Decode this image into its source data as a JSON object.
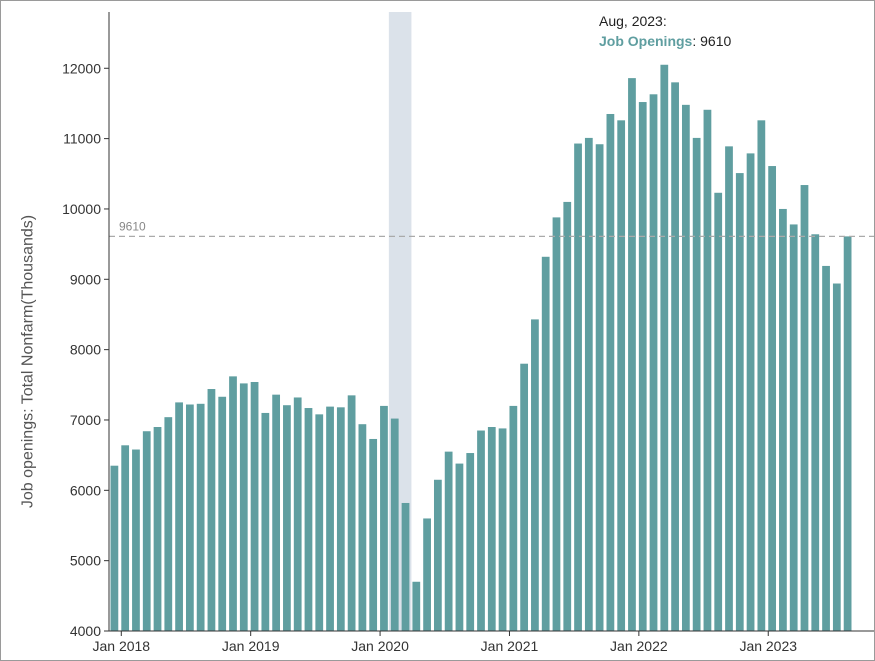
{
  "chart_data": {
    "type": "bar",
    "ylabel": "Job openings: Total Nonfarm(Thousands)",
    "xlabel": "",
    "ylim": [
      4000,
      12800
    ],
    "y_ticks": [
      4000,
      5000,
      6000,
      7000,
      8000,
      9000,
      10000,
      11000,
      12000
    ],
    "x_start": "2017-12",
    "x_ticks": [
      {
        "label": "Jan 2018",
        "date": "2018-01"
      },
      {
        "label": "Jan 2019",
        "date": "2019-01"
      },
      {
        "label": "Jan 2020",
        "date": "2020-01"
      },
      {
        "label": "Jan 2021",
        "date": "2021-01"
      },
      {
        "label": "Jan 2022",
        "date": "2022-01"
      },
      {
        "label": "Jan 2023",
        "date": "2023-01"
      }
    ],
    "recession_shading": {
      "start": "2020-02",
      "end": "2020-04"
    },
    "reference_line": {
      "value": 9610,
      "label": "9610"
    },
    "tooltip": {
      "date_label": "Aug, 2023:",
      "series_label": "Job Openings",
      "value_label": "9610"
    },
    "bar_color": "#5f9ea0",
    "recession_color": "#dbe2ea",
    "series": [
      {
        "name": "Job Openings",
        "values": [
          6350,
          6640,
          6580,
          6840,
          6900,
          7040,
          7250,
          7220,
          7230,
          7440,
          7330,
          7620,
          7520,
          7540,
          7100,
          7360,
          7210,
          7320,
          7170,
          7080,
          7190,
          7180,
          7350,
          6940,
          6730,
          7200,
          7020,
          5820,
          4700,
          5600,
          6150,
          6550,
          6380,
          6530,
          6850,
          6900,
          6880,
          7200,
          7800,
          8430,
          9320,
          9880,
          10100,
          10930,
          11010,
          10920,
          11350,
          11260,
          11860,
          11520,
          11630,
          12050,
          11800,
          11480,
          11010,
          11410,
          10230,
          10890,
          10510,
          10790,
          11260,
          10610,
          10000,
          9780,
          10340,
          9640,
          9190,
          8940,
          9610
        ]
      }
    ]
  }
}
